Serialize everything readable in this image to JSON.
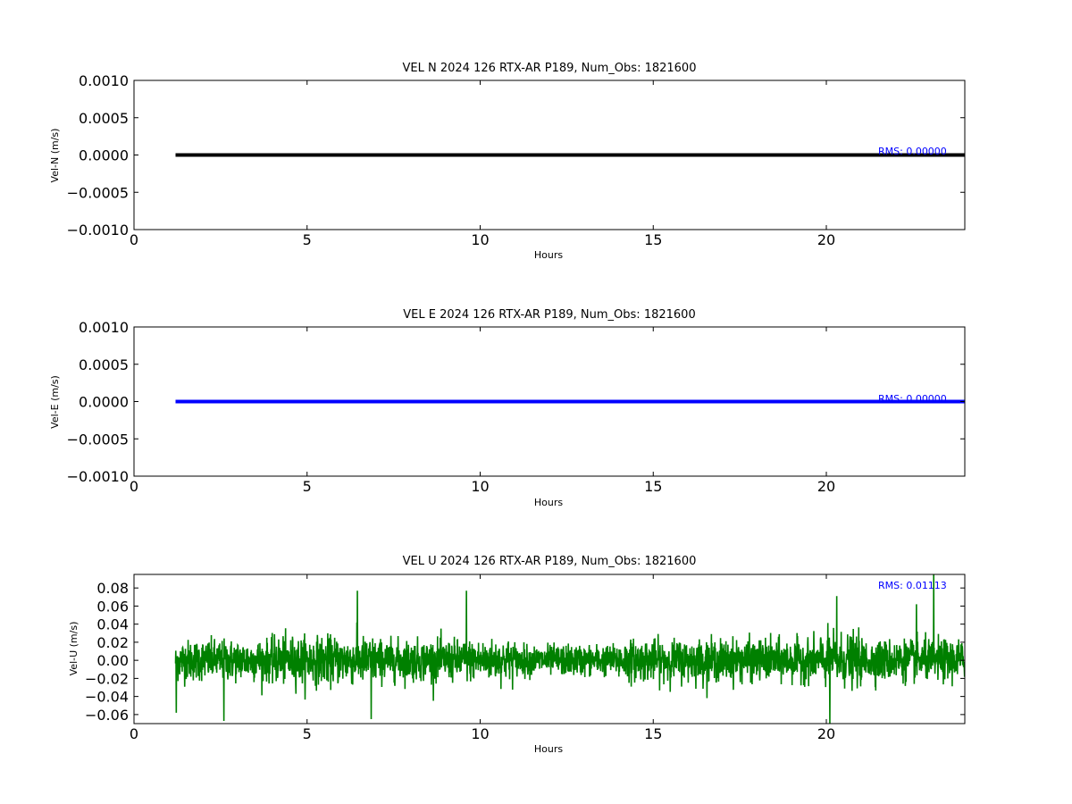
{
  "chart_data": [
    {
      "type": "line",
      "title": "VEL N 2024 126 RTX-AR  P189, Num_Obs: 1821600",
      "xlabel": "Hours",
      "ylabel": "Vel-N (m/s)",
      "xlim": [
        0,
        24
      ],
      "ylim": [
        -0.001,
        0.001
      ],
      "x_ticks": [
        0,
        5,
        10,
        15,
        20
      ],
      "x_tick_labels": [
        "0",
        "5",
        "10",
        "15",
        "20"
      ],
      "y_ticks": [
        -0.001,
        -0.0005,
        0,
        0.0005,
        0.001
      ],
      "y_tick_labels": [
        "−0.0010",
        "−0.0005",
        "0.0000",
        "0.0005",
        "0.0010"
      ],
      "grid": false,
      "color": "#000000",
      "annotation": "RMS:  0.00000",
      "series": [
        {
          "x": [
            1.2,
            24.0
          ],
          "y": [
            0,
            0
          ]
        }
      ]
    },
    {
      "type": "line",
      "title": "VEL E 2024 126 RTX-AR  P189, Num_Obs: 1821600",
      "xlabel": "Hours",
      "ylabel": "Vel-E (m/s)",
      "xlim": [
        0,
        24
      ],
      "ylim": [
        -0.001,
        0.001
      ],
      "x_ticks": [
        0,
        5,
        10,
        15,
        20
      ],
      "x_tick_labels": [
        "0",
        "5",
        "10",
        "15",
        "20"
      ],
      "y_ticks": [
        -0.001,
        -0.0005,
        0,
        0.0005,
        0.001
      ],
      "y_tick_labels": [
        "−0.0010",
        "−0.0005",
        "0.0000",
        "0.0005",
        "0.0010"
      ],
      "grid": false,
      "color": "#0000ff",
      "annotation": "RMS:  0.00000",
      "series": [
        {
          "x": [
            1.2,
            24.0
          ],
          "y": [
            0,
            0
          ]
        }
      ]
    },
    {
      "type": "line",
      "title": "VEL U 2024 126 RTX-AR  P189, Num_Obs: 1821600",
      "xlabel": "Hours",
      "ylabel": "Vel-U (m/s)",
      "xlim": [
        0,
        24
      ],
      "ylim": [
        -0.07,
        0.095
      ],
      "x_ticks": [
        0,
        5,
        10,
        15,
        20
      ],
      "x_tick_labels": [
        "0",
        "5",
        "10",
        "15",
        "20"
      ],
      "y_ticks": [
        -0.06,
        -0.04,
        -0.02,
        0,
        0.02,
        0.04,
        0.06,
        0.08
      ],
      "y_tick_labels": [
        "−0.06",
        "−0.04",
        "−0.02",
        "0.00",
        "0.02",
        "0.04",
        "0.06",
        "0.08"
      ],
      "grid": false,
      "color": "#008000",
      "annotation": "RMS:  0.01113",
      "noise": {
        "x_start": 1.2,
        "x_end": 24.0,
        "rms": 0.01113,
        "mean": 0
      },
      "peaks": [
        {
          "x": 1.22,
          "y": -0.058
        },
        {
          "x": 2.6,
          "y": -0.067
        },
        {
          "x": 6.45,
          "y": 0.077
        },
        {
          "x": 6.85,
          "y": -0.065
        },
        {
          "x": 9.6,
          "y": 0.077
        },
        {
          "x": 20.1,
          "y": -0.07
        },
        {
          "x": 20.3,
          "y": 0.071
        },
        {
          "x": 22.6,
          "y": 0.062
        },
        {
          "x": 23.1,
          "y": 0.095
        }
      ]
    }
  ]
}
